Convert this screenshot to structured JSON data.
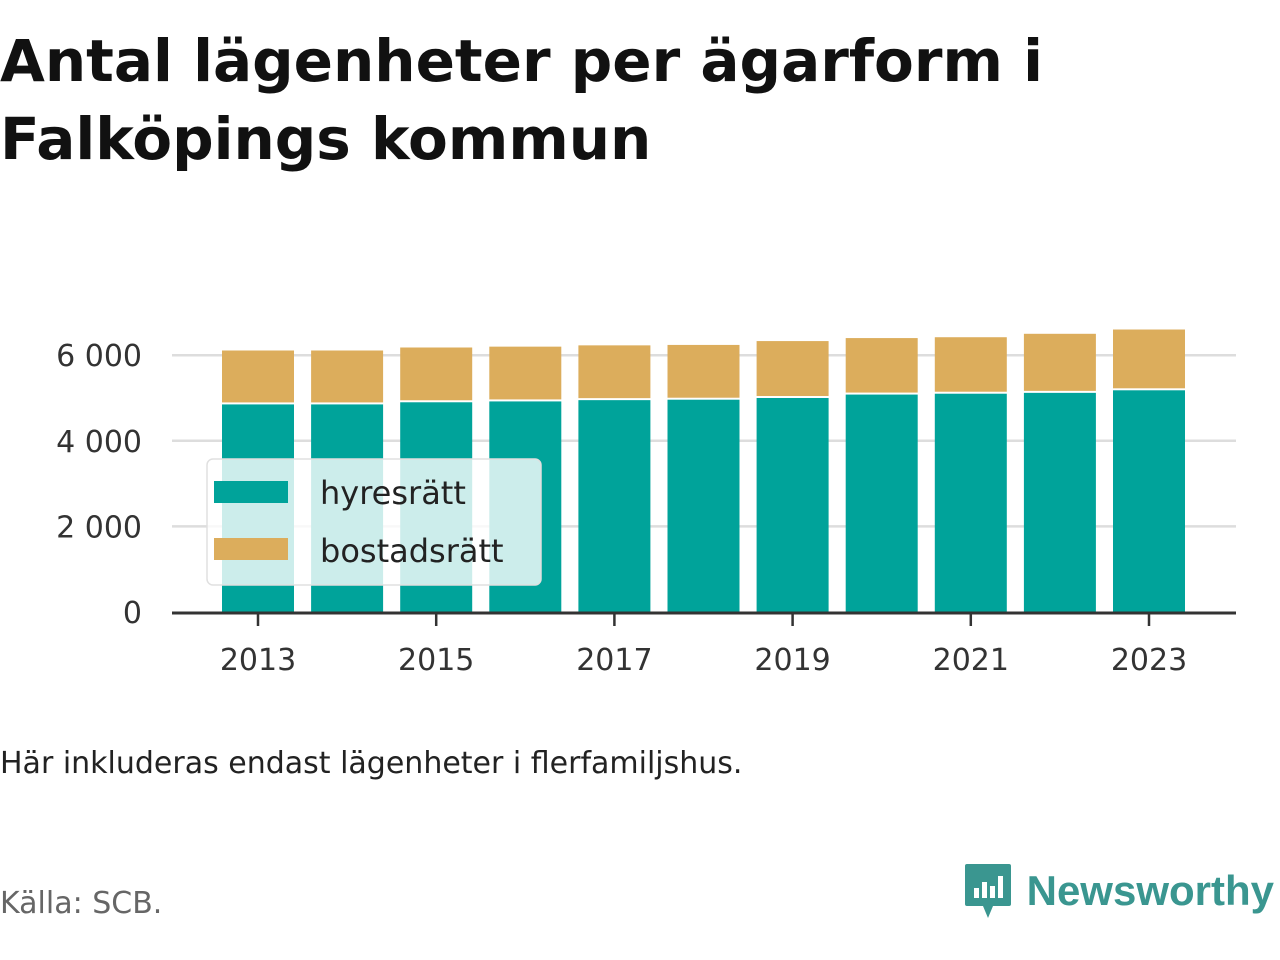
{
  "title": "Antal lägenheter per ägarform i Falköpings kommun",
  "note": "Här inkluderas endast lägenheter i flerfamiljshus.",
  "source": "Källa: SCB.",
  "brand": {
    "name": "Newsworthy",
    "icon": "newsworthy-logo-icon",
    "color": "#3a9690"
  },
  "colors": {
    "hyresratt": "#00a39a",
    "bostadsratt": "#dcad5c",
    "grid": "#dddddd",
    "axis": "#333333"
  },
  "chart_data": {
    "type": "bar",
    "stacked": true,
    "categories": [
      2013,
      2014,
      2015,
      2016,
      2017,
      2018,
      2019,
      2020,
      2021,
      2022,
      2023
    ],
    "series": [
      {
        "name": "hyresrätt",
        "color": "#00a39a",
        "values": [
          4850,
          4850,
          4900,
          4920,
          4950,
          4960,
          5000,
          5080,
          5100,
          5120,
          5180
        ]
      },
      {
        "name": "bostadsrätt",
        "color": "#dcad5c",
        "values": [
          1260,
          1260,
          1280,
          1280,
          1280,
          1280,
          1330,
          1320,
          1320,
          1380,
          1420
        ]
      }
    ],
    "x_tick_labels": [
      "2013",
      "2015",
      "2017",
      "2019",
      "2021",
      "2023"
    ],
    "y_ticks": [
      0,
      2000,
      4000,
      6000
    ],
    "y_tick_labels": [
      "0",
      "2 000",
      "4 000",
      "6 000"
    ],
    "ylim": [
      0,
      6500
    ],
    "grid": "horizontal",
    "legend_position": "left, inside plot"
  }
}
